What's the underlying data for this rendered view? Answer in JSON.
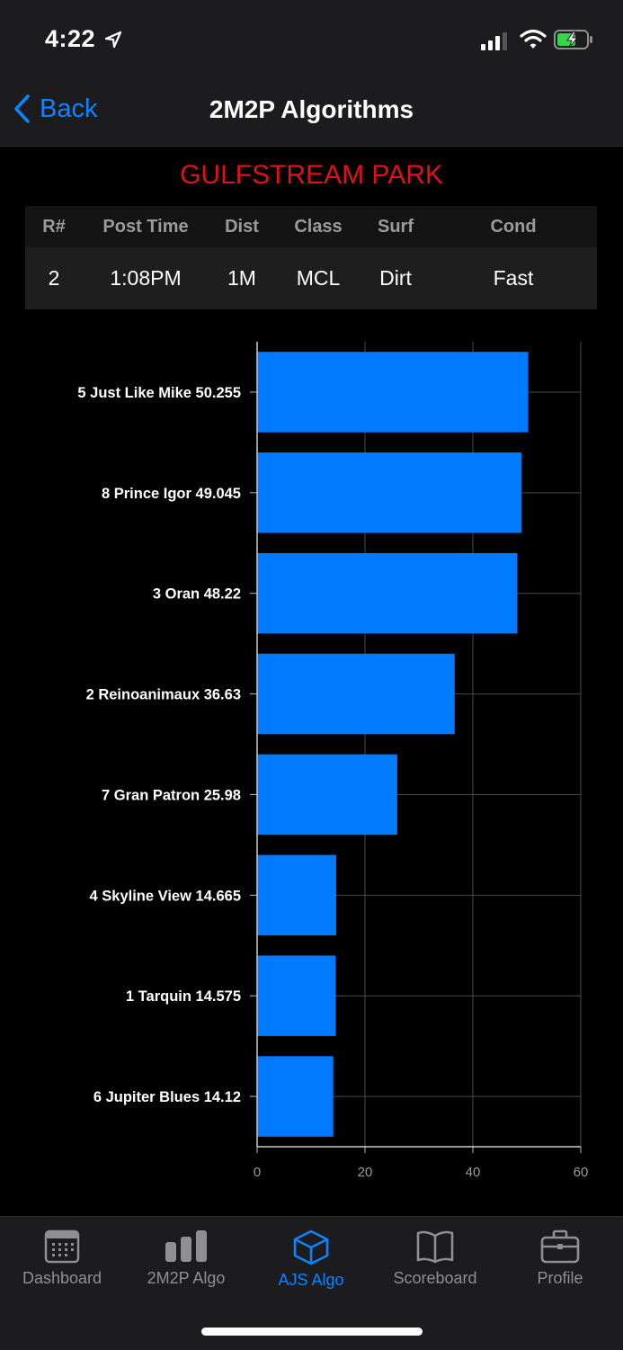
{
  "status": {
    "time": "4:22"
  },
  "nav": {
    "back_label": "Back",
    "title": "2M2P Algorithms"
  },
  "track_name": "GULFSTREAM PARK",
  "race_table": {
    "headers": [
      "R#",
      "Post Time",
      "Dist",
      "Class",
      "Surf",
      "Cond"
    ],
    "values": [
      "2",
      "1:08PM",
      "1M",
      "MCL",
      "Dirt",
      "Fast"
    ]
  },
  "chart_data": {
    "type": "bar",
    "orientation": "horizontal",
    "categories": [
      "5 Just Like Mike 50.255",
      "8 Prince Igor 49.045",
      "3 Oran 48.22",
      "2 Reinoanimaux 36.63",
      "7 Gran Patron 25.98",
      "4 Skyline View 14.665",
      "1 Tarquin 14.575",
      "6 Jupiter Blues 14.12"
    ],
    "values": [
      50.255,
      49.045,
      48.22,
      36.63,
      25.98,
      14.665,
      14.575,
      14.12
    ],
    "xlim": [
      0,
      60
    ],
    "xticks": [
      0,
      20,
      40,
      60
    ],
    "grid": true,
    "bar_color": "#007aff"
  },
  "tabs": [
    {
      "label": "Dashboard",
      "icon": "calendar-icon",
      "active": false
    },
    {
      "label": "2M2P Algo",
      "icon": "bar-chart-icon",
      "active": false
    },
    {
      "label": "AJS Algo",
      "icon": "cube-icon",
      "active": true
    },
    {
      "label": "Scoreboard",
      "icon": "book-icon",
      "active": false
    },
    {
      "label": "Profile",
      "icon": "briefcase-icon",
      "active": false
    }
  ],
  "colors": {
    "accent": "#0a84ff",
    "track": "#e0111b",
    "bar": "#007aff"
  }
}
